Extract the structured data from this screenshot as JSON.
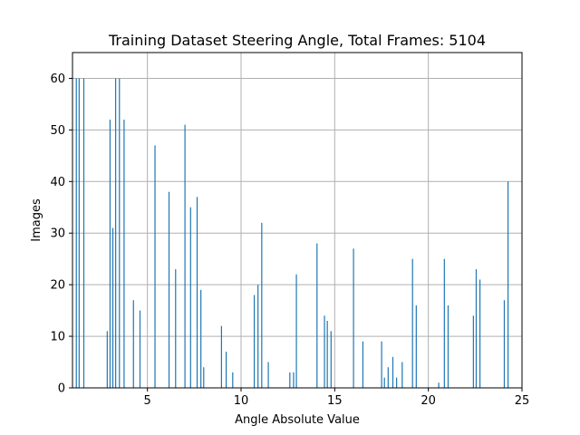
{
  "chart_data": {
    "type": "bar",
    "title": "Training Dataset Steering Angle, Total Frames: 5104",
    "xlabel": "Angle Absolute Value",
    "ylabel": "Images",
    "xlim": [
      1.0,
      25.0
    ],
    "ylim": [
      0,
      65
    ],
    "xticks": [
      5,
      10,
      15,
      20,
      25
    ],
    "yticks": [
      0,
      10,
      20,
      30,
      40,
      50,
      60
    ],
    "grid": true,
    "color": "#1f77b4",
    "x": [
      1.2,
      1.35,
      1.6,
      2.85,
      3.0,
      3.15,
      3.3,
      3.5,
      3.75,
      4.25,
      4.6,
      5.4,
      6.15,
      6.5,
      7.0,
      7.3,
      7.65,
      7.85,
      8.0,
      8.95,
      9.2,
      9.55,
      10.7,
      10.9,
      11.1,
      11.45,
      12.6,
      12.8,
      12.95,
      14.05,
      14.45,
      14.6,
      14.8,
      16.0,
      16.5,
      17.5,
      17.65,
      17.85,
      18.1,
      18.3,
      18.6,
      19.15,
      19.35,
      20.55,
      20.85,
      21.05,
      22.4,
      22.55,
      22.75,
      24.05,
      24.25
    ],
    "values": [
      60,
      60,
      60,
      11,
      52,
      31,
      60,
      60,
      52,
      17,
      15,
      47,
      38,
      23,
      51,
      35,
      37,
      19,
      4,
      12,
      7,
      3,
      18,
      20,
      32,
      5,
      3,
      3,
      22,
      28,
      14,
      13,
      11,
      27,
      9,
      9,
      2,
      4,
      6,
      2,
      5,
      25,
      16,
      1,
      25,
      16,
      14,
      23,
      21,
      17,
      40
    ]
  }
}
